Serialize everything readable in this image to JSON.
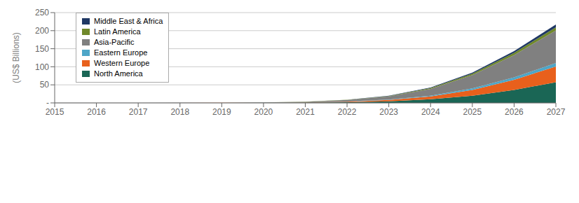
{
  "chart_data": {
    "type": "area",
    "stacked": true,
    "grid": true,
    "legend": "upper left",
    "x": [
      2015,
      2016,
      2017,
      2018,
      2019,
      2020,
      2021,
      2022,
      2023,
      2024,
      2025,
      2026,
      2027
    ],
    "xlim": [
      2015,
      2027
    ],
    "xticks": [
      2015,
      2016,
      2017,
      2018,
      2019,
      2020,
      2021,
      2022,
      2023,
      2024,
      2025,
      2026,
      2027
    ],
    "ylabel": "(US$ Billions)",
    "ylim": [
      0,
      250
    ],
    "yticks": [
      {
        "value": 0,
        "label": "-"
      },
      50,
      100,
      150,
      200,
      250
    ],
    "series": [
      {
        "name": "North America",
        "color": "#1a6655",
        "values": [
          0.02,
          0.03,
          0.05,
          0.08,
          0.15,
          0.35,
          0.8,
          2.0,
          4.5,
          10.0,
          20.0,
          36.0,
          57.0
        ]
      },
      {
        "name": "Western Europe",
        "color": "#e8601c",
        "values": [
          0.01,
          0.02,
          0.04,
          0.06,
          0.12,
          0.28,
          0.6,
          1.6,
          3.5,
          8.0,
          16.0,
          28.0,
          44.0
        ]
      },
      {
        "name": "Eastern Europe",
        "color": "#4da6c8",
        "values": [
          0.005,
          0.01,
          0.015,
          0.02,
          0.04,
          0.08,
          0.18,
          0.45,
          1.0,
          2.0,
          4.0,
          6.5,
          9.5
        ]
      },
      {
        "name": "Asia-Pacific",
        "color": "#808080",
        "values": [
          0.02,
          0.04,
          0.07,
          0.12,
          0.25,
          0.6,
          1.5,
          4.0,
          9.0,
          19.0,
          37.0,
          62.0,
          90.0
        ]
      },
      {
        "name": "Latin America",
        "color": "#70882a",
        "values": [
          0.005,
          0.01,
          0.015,
          0.02,
          0.04,
          0.08,
          0.18,
          0.45,
          1.0,
          2.0,
          3.8,
          6.0,
          9.0
        ]
      },
      {
        "name": "Middle East & Africa",
        "color": "#1f3864",
        "values": [
          0.005,
          0.01,
          0.015,
          0.02,
          0.03,
          0.07,
          0.15,
          0.38,
          0.8,
          1.6,
          3.0,
          5.0,
          7.5
        ]
      }
    ]
  }
}
